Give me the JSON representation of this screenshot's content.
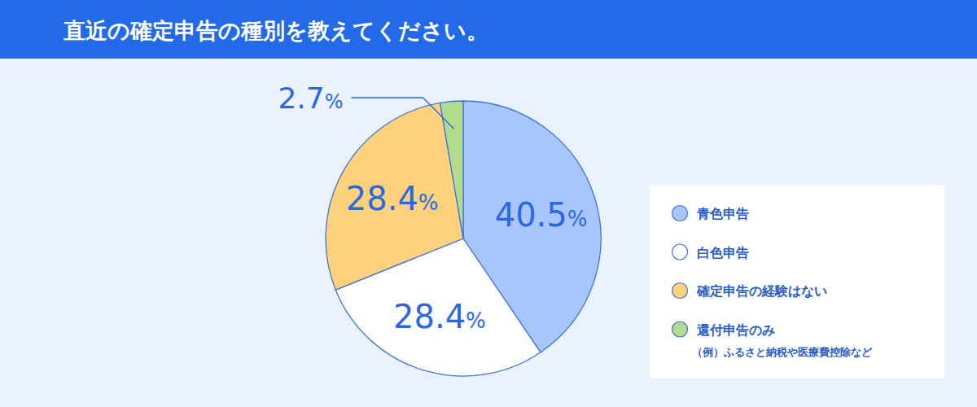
{
  "chart_data": {
    "type": "pie",
    "title": "直近の確定申告の種別を教えてください。",
    "categories": [
      "青色申告",
      "白色申告",
      "確定申告の経験はない",
      "還付申告のみ"
    ],
    "legend_subtitles": [
      null,
      null,
      null,
      "（例）ふるさと納税や医療費控除など"
    ],
    "values": [
      40.5,
      28.4,
      28.4,
      2.7
    ],
    "value_labels": [
      "40.5%",
      "28.4%",
      "28.4%",
      "2.7%"
    ],
    "colors": [
      "#a9c6fc",
      "#ffffff",
      "#fed17b",
      "#b1dc8c"
    ],
    "data_labels": true,
    "legend": "right"
  }
}
